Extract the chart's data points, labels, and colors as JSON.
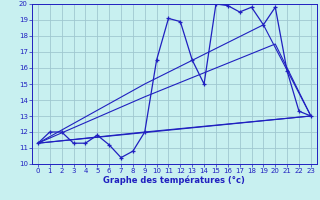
{
  "title": "Graphe des températures (°c)",
  "xlim": [
    -0.5,
    23.5
  ],
  "ylim": [
    10,
    20
  ],
  "xticks": [
    0,
    1,
    2,
    3,
    4,
    5,
    6,
    7,
    8,
    9,
    10,
    11,
    12,
    13,
    14,
    15,
    16,
    17,
    18,
    19,
    20,
    21,
    22,
    23
  ],
  "yticks": [
    10,
    11,
    12,
    13,
    14,
    15,
    16,
    17,
    18,
    19,
    20
  ],
  "bg_color": "#c8f0f0",
  "line_color": "#2020c0",
  "grid_color": "#a0c8d0",
  "main_series": {
    "x": [
      0,
      1,
      2,
      3,
      4,
      5,
      6,
      7,
      8,
      9,
      10,
      11,
      12,
      13,
      14,
      15,
      16,
      17,
      18,
      19,
      20,
      21,
      22,
      23
    ],
    "y": [
      11.3,
      12.0,
      12.0,
      11.3,
      11.3,
      11.8,
      11.2,
      10.4,
      10.8,
      12.0,
      16.5,
      19.1,
      18.9,
      16.5,
      15.0,
      20.0,
      19.9,
      19.5,
      19.8,
      18.7,
      19.8,
      15.8,
      13.3,
      13.0
    ]
  },
  "trend_lines": [
    {
      "x": [
        0,
        23
      ],
      "y": [
        11.3,
        13.0
      ]
    },
    {
      "x": [
        0,
        9,
        23
      ],
      "y": [
        11.3,
        12.0,
        13.0
      ]
    },
    {
      "x": [
        0,
        9,
        20,
        23
      ],
      "y": [
        11.3,
        14.2,
        17.5,
        13.0
      ]
    },
    {
      "x": [
        0,
        9,
        19,
        23
      ],
      "y": [
        11.3,
        15.0,
        18.7,
        13.0
      ]
    }
  ],
  "xlabel_fontsize": 6,
  "tick_fontsize": 5
}
